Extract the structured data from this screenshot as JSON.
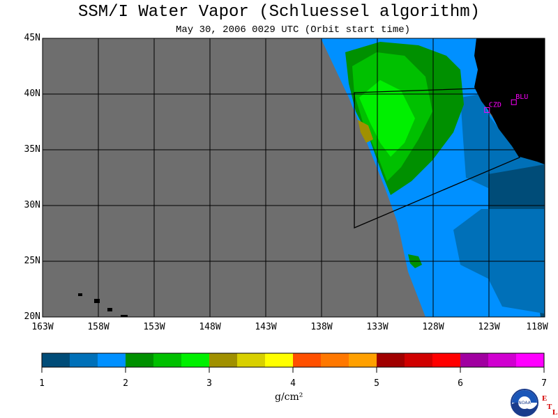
{
  "title": "SSM/I Water Vapor (Schluessel algorithm)",
  "subtitle": "May 30, 2006  0029 UTC  (Orbit start time)",
  "lat_labels": [
    "45N",
    "40N",
    "35N",
    "30N",
    "25N",
    "20N"
  ],
  "lon_labels": [
    "163W",
    "158W",
    "153W",
    "148W",
    "143W",
    "138W",
    "133W",
    "128W",
    "123W",
    "118W"
  ],
  "stations": [
    {
      "name": "CZD",
      "lat": 38.6,
      "lon": -123.2
    },
    {
      "name": "BLU",
      "lat": 39.3,
      "lon": -120.8
    }
  ],
  "colorbar": {
    "ticks": [
      "1",
      "2",
      "3",
      "4",
      "5",
      "6",
      "7"
    ],
    "units": "g/cm²",
    "colors": [
      "#004c78",
      "#0070b8",
      "#0090ff",
      "#009000",
      "#00c000",
      "#00f000",
      "#a09000",
      "#d8d000",
      "#ffff00",
      "#ff5000",
      "#ff7800",
      "#ffa000",
      "#a00000",
      "#d00000",
      "#ff0000",
      "#a000a0",
      "#d000d0",
      "#ff00ff"
    ]
  },
  "map_colors": {
    "nodata": "#6e6e6e",
    "land": "#000000",
    "station": "#ff00ff"
  },
  "logo": {
    "text": "NOAA",
    "badge": [
      "E",
      "T",
      "L"
    ]
  }
}
